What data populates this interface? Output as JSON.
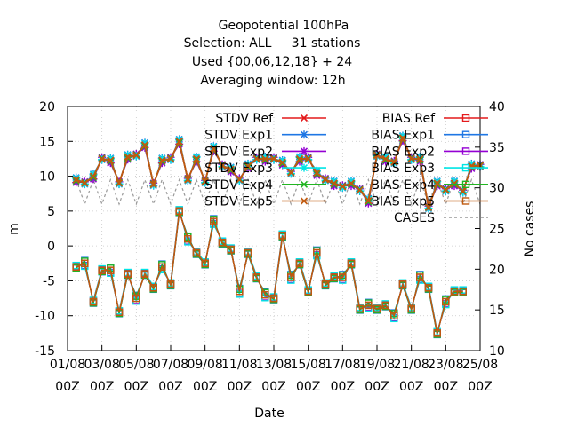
{
  "header": {
    "line1": "Geopotential 100hPa",
    "line2": "Selection: ALL     31 stations",
    "line3": "Used {00,06,12,18} + 24",
    "line4": "Averaging window: 12h"
  },
  "colors": {
    "stdv_ref": "#e41a1c",
    "stdv_exp1": "#1f77e4",
    "stdv_exp2": "#9400d3",
    "stdv_exp3": "#00e5e5",
    "stdv_exp4": "#22b522",
    "stdv_exp5": "#c05a10",
    "bias_ref": "#e41a1c",
    "bias_exp1": "#1f77e4",
    "bias_exp2": "#9400d3",
    "bias_exp3": "#00e5e5",
    "bias_exp4": "#22b522",
    "bias_exp5": "#c05a10",
    "cases": "#999999"
  },
  "chart_data": {
    "type": "line",
    "xlabel": "Date",
    "ylabel": "m",
    "y2label": "No cases",
    "ylim": [
      -15,
      20
    ],
    "y2lim": [
      10,
      40
    ],
    "y_ticks": [
      "-15",
      "-10",
      "-5",
      "0",
      "5",
      "10",
      "15",
      "20"
    ],
    "y2_ticks": [
      "10",
      "15",
      "20",
      "25",
      "30",
      "35",
      "40"
    ],
    "x_ticks": [
      {
        "t": 0,
        "top": "01/08",
        "bottom": "00Z"
      },
      {
        "t": 2,
        "top": "03/08",
        "bottom": "00Z"
      },
      {
        "t": 4,
        "top": "05/08",
        "bottom": "00Z"
      },
      {
        "t": 6,
        "top": "07/08",
        "bottom": "00Z"
      },
      {
        "t": 8,
        "top": "09/08",
        "bottom": "00Z"
      },
      {
        "t": 10,
        "top": "11/08",
        "bottom": "00Z"
      },
      {
        "t": 12,
        "top": "13/08",
        "bottom": "00Z"
      },
      {
        "t": 14,
        "top": "15/08",
        "bottom": "00Z"
      },
      {
        "t": 16,
        "top": "17/08",
        "bottom": "00Z"
      },
      {
        "t": 18,
        "top": "19/08",
        "bottom": "00Z"
      },
      {
        "t": 20,
        "top": "21/08",
        "bottom": "00Z"
      },
      {
        "t": 22,
        "top": "23/08",
        "bottom": "00Z"
      },
      {
        "t": 24,
        "top": "25/08",
        "bottom": "00Z"
      }
    ],
    "x_days": [
      0.5,
      1.0,
      1.5,
      2.0,
      2.5,
      3.0,
      3.5,
      4.0,
      4.5,
      5.0,
      5.5,
      6.0,
      6.5,
      7.0,
      7.5,
      8.0,
      8.5,
      9.0,
      9.5,
      10.0,
      10.5,
      11.0,
      11.5,
      12.0,
      12.5,
      13.0,
      13.5,
      14.0,
      14.5,
      15.0,
      15.5,
      16.0,
      16.5,
      17.0,
      17.5,
      18.0,
      18.5,
      19.0,
      19.5,
      20.0,
      20.5,
      21.0,
      21.5,
      22.0,
      22.5,
      23.0,
      23.5,
      24.0
    ],
    "legend": [
      {
        "key": "stdv_ref",
        "label": "STDV Ref",
        "marker": "x"
      },
      {
        "key": "stdv_exp1",
        "label": "STDV Exp1",
        "marker": "star"
      },
      {
        "key": "stdv_exp2",
        "label": "STDV Exp2",
        "marker": "star"
      },
      {
        "key": "stdv_exp3",
        "label": "STDV Exp3",
        "marker": "star"
      },
      {
        "key": "stdv_exp4",
        "label": "STDV Exp4",
        "marker": "x"
      },
      {
        "key": "stdv_exp5",
        "label": "STDV Exp5",
        "marker": "x"
      },
      {
        "key": "bias_ref",
        "label": "BIAS Ref",
        "marker": "square"
      },
      {
        "key": "bias_exp1",
        "label": "BIAS Exp1",
        "marker": "square"
      },
      {
        "key": "bias_exp2",
        "label": "BIAS Exp2",
        "marker": "square"
      },
      {
        "key": "bias_exp3",
        "label": "BIAS Exp3",
        "marker": "square"
      },
      {
        "key": "bias_exp4",
        "label": "BIAS Exp4",
        "marker": "square"
      },
      {
        "key": "bias_exp5",
        "label": "BIAS Exp5",
        "marker": "square"
      },
      {
        "key": "cases",
        "label": "CASES",
        "marker": "none"
      }
    ],
    "series": {
      "stdv": [
        9.5,
        9.0,
        10.0,
        12.5,
        12.3,
        9.0,
        12.8,
        13.0,
        14.5,
        8.8,
        12.3,
        12.5,
        15.0,
        9.5,
        12.5,
        9.2,
        14.0,
        11.5,
        11.0,
        9.5,
        11.5,
        12.5,
        12.5,
        12.5,
        12.0,
        10.5,
        12.5,
        12.5,
        10.5,
        9.5,
        9.0,
        8.5,
        9.0,
        8.0,
        6.5,
        13.0,
        12.5,
        12.0,
        15.5,
        12.5,
        12.5,
        5.5,
        9.0,
        8.0,
        9.0,
        7.8,
        11.5,
        11.5
      ],
      "stdv_exp_offsets": {
        "stdv_exp1": 0.3,
        "stdv_exp2": -0.4,
        "stdv_exp3": 0.2,
        "stdv_exp4": -0.2,
        "stdv_exp5": 0.0
      },
      "bias": [
        -3.0,
        -2.5,
        -8.0,
        -3.5,
        -3.5,
        -9.5,
        -4.0,
        -7.5,
        -4.0,
        -6.0,
        -3.0,
        -5.5,
        5.0,
        1.0,
        -1.0,
        -2.5,
        3.5,
        0.5,
        -0.5,
        -6.5,
        -1.0,
        -4.5,
        -7.0,
        -7.5,
        1.5,
        -4.5,
        -2.5,
        -6.5,
        -1.0,
        -5.5,
        -4.5,
        -4.5,
        -2.5,
        -9.0,
        -8.5,
        -9.0,
        -8.5,
        -10.0,
        -5.5,
        -9.0,
        -4.5,
        -6.0,
        -12.5,
        -8.0,
        -6.5,
        -6.5
      ],
      "bias_x_days": [
        0.5,
        1.0,
        1.5,
        2.0,
        2.5,
        3.0,
        3.5,
        4.0,
        4.5,
        5.0,
        5.5,
        6.0,
        6.5,
        7.0,
        7.5,
        8.0,
        8.5,
        9.0,
        9.5,
        10.0,
        10.5,
        11.0,
        11.5,
        12.0,
        12.5,
        13.0,
        13.5,
        14.0,
        14.5,
        15.0,
        15.5,
        16.0,
        16.5,
        17.0,
        17.5,
        18.0,
        18.5,
        19.0,
        19.5,
        20.0,
        20.5,
        21.0,
        21.5,
        22.0,
        22.5,
        23.0
      ],
      "bias_exp_offsets": {
        "bias_exp1": 0.4,
        "bias_exp2": -0.3,
        "bias_exp3": -0.4,
        "bias_exp4": 0.3,
        "bias_exp5": 0.0
      },
      "cases": [
        31,
        28,
        31,
        28,
        31,
        28,
        31,
        28,
        31,
        28,
        31,
        28,
        31,
        28,
        31,
        28,
        31,
        28,
        31,
        28,
        31,
        28,
        31,
        28,
        31,
        28,
        31,
        28,
        31,
        28,
        31,
        28,
        31,
        28,
        31,
        28,
        31,
        28,
        31,
        28,
        31,
        28,
        31,
        28,
        31,
        28,
        31,
        28
      ]
    }
  }
}
